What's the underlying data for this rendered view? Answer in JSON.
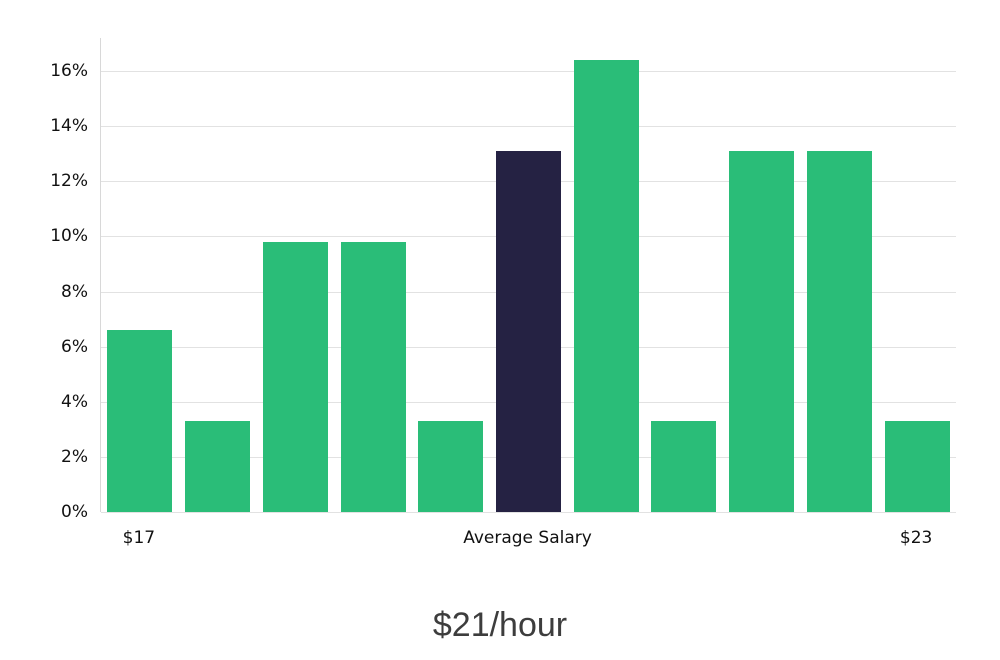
{
  "page": {
    "background": "#ffffff"
  },
  "chart_data": {
    "type": "bar",
    "title": "$21/hour",
    "values": [
      6.6,
      3.3,
      9.8,
      9.8,
      3.3,
      13.1,
      16.4,
      3.3,
      13.1,
      13.1,
      3.3
    ],
    "highlight_index": 5,
    "bar_color": "#2abd78",
    "highlight_color": "#252243",
    "gridline_color": "#e2e2e2",
    "yticks": [
      0,
      2,
      4,
      6,
      8,
      10,
      12,
      14,
      16
    ],
    "ytick_suffix": "%",
    "ylim": [
      0,
      17.2
    ],
    "xticks": [
      {
        "index": 0,
        "label": "$17"
      },
      {
        "index": 5,
        "label": "Average Salary"
      },
      {
        "index": 10,
        "label": "$23"
      }
    ],
    "xlabel": "",
    "ylabel": "",
    "legend_position": "none",
    "grid": true
  }
}
